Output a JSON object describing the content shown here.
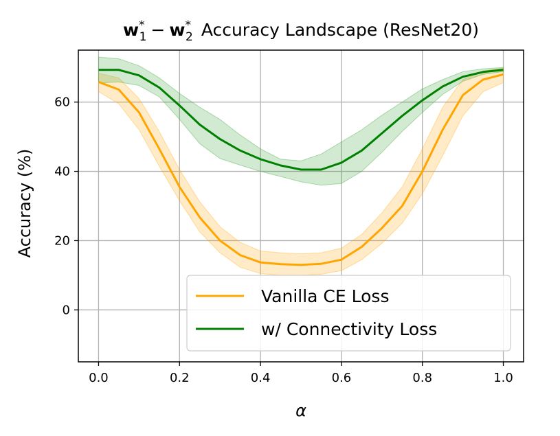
{
  "chart_data": {
    "type": "line",
    "title": {
      "w": "w",
      "sub1": "1",
      "sub2": "2",
      "sup": "*",
      "minus": "−",
      "rest": "Accuracy Landscape (ResNet20)"
    },
    "xlabel": "α",
    "ylabel": "Accuracy (%)",
    "xlim": [
      -0.05,
      1.05
    ],
    "ylim": [
      -15,
      75
    ],
    "xticks": [
      0.0,
      0.2,
      0.4,
      0.6,
      0.8,
      1.0
    ],
    "xtick_labels": [
      "0.0",
      "0.2",
      "0.4",
      "0.6",
      "0.8",
      "1.0"
    ],
    "yticks": [
      0,
      20,
      40,
      60
    ],
    "ytick_labels": [
      "0",
      "20",
      "40",
      "60"
    ],
    "grid": true,
    "legend_position": "lower-right",
    "x": [
      0.0,
      0.05,
      0.1,
      0.15,
      0.2,
      0.25,
      0.3,
      0.35,
      0.4,
      0.45,
      0.5,
      0.55,
      0.6,
      0.65,
      0.7,
      0.75,
      0.8,
      0.85,
      0.9,
      0.95,
      1.0
    ],
    "series": [
      {
        "name": "Vanilla CE Loss",
        "color": "#FFA500",
        "band_color": "#FFA500",
        "values": [
          65.8,
          63.6,
          57.0,
          46.5,
          35.5,
          26.7,
          20.0,
          15.8,
          13.7,
          13.2,
          13.0,
          13.3,
          14.5,
          18.2,
          23.6,
          30.0,
          40.0,
          52.0,
          62.0,
          66.5,
          68.0
        ],
        "lower": [
          63.0,
          59.5,
          52.0,
          41.5,
          31.5,
          22.5,
          16.5,
          12.3,
          10.5,
          10.0,
          10.0,
          10.3,
          11.3,
          14.5,
          19.2,
          25.0,
          33.5,
          44.5,
          56.0,
          63.0,
          65.6
        ],
        "upper": [
          68.3,
          67.0,
          61.0,
          51.5,
          40.5,
          31.2,
          24.0,
          19.5,
          17.0,
          16.5,
          16.2,
          16.5,
          17.8,
          21.8,
          28.0,
          35.5,
          46.5,
          58.5,
          66.5,
          69.0,
          69.8
        ]
      },
      {
        "name": "w/ Connectivity Loss",
        "color": "#008000",
        "band_color": "#2CA02C",
        "values": [
          69.3,
          69.3,
          67.7,
          64.2,
          59.0,
          53.5,
          49.3,
          46.0,
          43.5,
          41.7,
          40.5,
          40.5,
          42.5,
          46.0,
          51.0,
          56.0,
          60.5,
          64.5,
          67.3,
          68.7,
          69.3
        ],
        "lower": [
          65.5,
          65.8,
          64.8,
          61.5,
          55.0,
          48.0,
          43.7,
          41.8,
          40.0,
          38.5,
          37.0,
          36.0,
          36.5,
          40.0,
          45.5,
          51.5,
          57.0,
          62.2,
          66.0,
          68.0,
          68.8
        ],
        "upper": [
          73.0,
          72.5,
          70.5,
          67.0,
          62.5,
          58.5,
          55.0,
          50.5,
          46.5,
          43.5,
          43.0,
          45.0,
          48.5,
          52.0,
          56.2,
          60.0,
          63.8,
          66.5,
          68.8,
          69.6,
          70.0
        ]
      }
    ]
  }
}
